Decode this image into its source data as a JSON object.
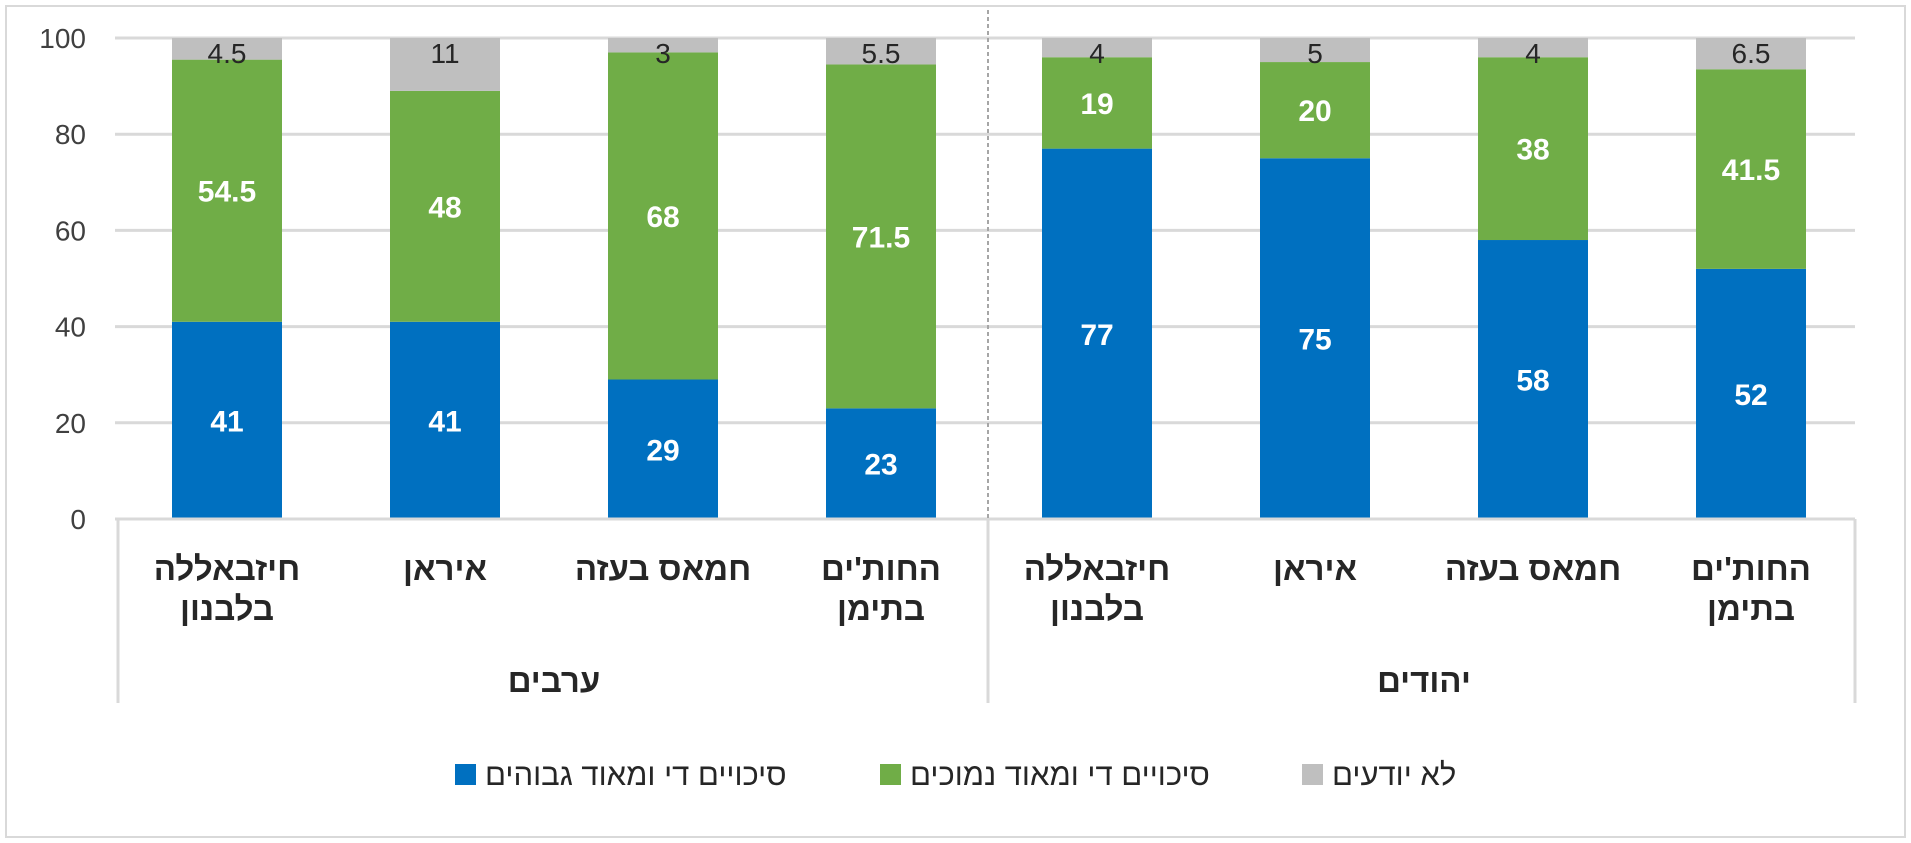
{
  "chart_data": {
    "type": "bar",
    "stacked": true,
    "ylim": [
      0,
      100
    ],
    "yticks": [
      0,
      20,
      40,
      60,
      80,
      100
    ],
    "groups": [
      {
        "name": "ערבים",
        "categories": [
          "חיזבאללה בלבנון",
          "איראן",
          "חמאס בעזה",
          "החות'ים בתימן"
        ],
        "series": [
          {
            "name": "סיכויים די ומאוד גבוהים",
            "color": "#0070C0",
            "values": [
              41,
              41,
              29,
              23
            ]
          },
          {
            "name": "סיכויים די ומאוד נמוכים",
            "color": "#70AD47",
            "values": [
              54.5,
              48,
              68,
              71.5
            ]
          },
          {
            "name": "לא יודעים",
            "color": "#BFBFBF",
            "values": [
              4.5,
              11,
              3,
              5.5
            ]
          }
        ]
      },
      {
        "name": "יהודים",
        "categories": [
          "חיזבאללה בלבנון",
          "איראן",
          "חמאס בעזה",
          "החות'ים בתימן"
        ],
        "series": [
          {
            "name": "סיכויים די ומאוד גבוהים",
            "color": "#0070C0",
            "values": [
              77,
              75,
              58,
              52
            ]
          },
          {
            "name": "סיכויים די ומאוד נמוכים",
            "color": "#70AD47",
            "values": [
              19,
              20,
              38,
              41.5
            ]
          },
          {
            "name": "לא יודעים",
            "color": "#BFBFBF",
            "values": [
              4,
              5,
              4,
              6.5
            ]
          }
        ]
      }
    ],
    "legend": [
      {
        "name": "סיכויים די ומאוד גבוהים",
        "color": "#0070C0"
      },
      {
        "name": "סיכויים די ומאוד נמוכים",
        "color": "#70AD47"
      },
      {
        "name": "לא יודעים",
        "color": "#BFBFBF"
      }
    ],
    "legend_position": "bottom"
  }
}
